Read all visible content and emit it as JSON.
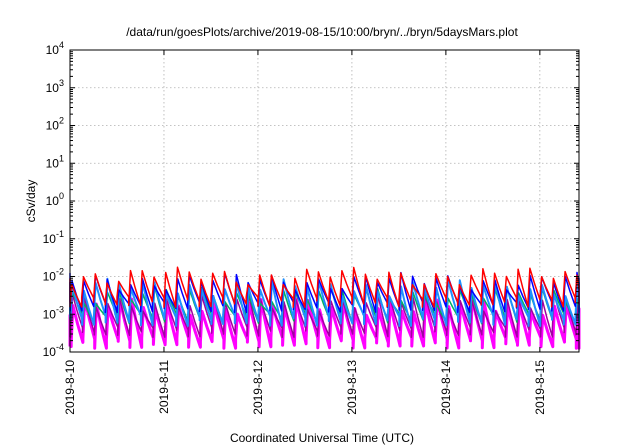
{
  "chart_data": {
    "type": "line",
    "title": "/data/run/goesPlots/archive/2019-08-15/10:00/bryn/../bryn/5daysMars.plot",
    "xlabel": "Coordinated Universal Time (UTC)",
    "ylabel": "cSv/day",
    "yscale": "log",
    "ylim": [
      0.0001,
      10000
    ],
    "xlim": [
      "2019-08-10T00:00",
      "2019-08-15T10:00"
    ],
    "grid": true,
    "x_ticks": [
      "2019-8-10",
      "2019-8-11",
      "2019-8-12",
      "2019-8-13",
      "2019-8-14",
      "2019-8-15"
    ],
    "y_ticks": [
      {
        "value": 0.0001,
        "base": "10",
        "exp": "-4"
      },
      {
        "value": 0.001,
        "base": "10",
        "exp": "-3"
      },
      {
        "value": 0.01,
        "base": "10",
        "exp": "-2"
      },
      {
        "value": 0.1,
        "base": "10",
        "exp": "-1"
      },
      {
        "value": 1,
        "base": "10",
        "exp": "0"
      },
      {
        "value": 10,
        "base": "10",
        "exp": "1"
      },
      {
        "value": 100,
        "base": "10",
        "exp": "2"
      },
      {
        "value": 1000,
        "base": "10",
        "exp": "3"
      },
      {
        "value": 10000,
        "base": "10",
        "exp": "4"
      }
    ],
    "cycle_hours": 3,
    "series": [
      {
        "color": "#ff00ff",
        "peak": 0.0017,
        "trough": 0.00018,
        "shift_hours": 0.3,
        "width": 3
      },
      {
        "color": "#a000a0",
        "peak": 0.0022,
        "trough": 0.00035,
        "shift_hours": 0.2,
        "width": 1.5
      },
      {
        "color": "#00b060",
        "peak": 0.0035,
        "trough": 0.0008,
        "shift_hours": 0.15,
        "width": 1.5
      },
      {
        "color": "#1e90ff",
        "peak": 0.0055,
        "trough": 0.0007,
        "shift_hours": 0.1,
        "width": 2
      },
      {
        "color": "#0000ff",
        "peak": 0.008,
        "trough": 0.0016,
        "shift_hours": 0.05,
        "width": 1.5
      },
      {
        "color": "#ff0000",
        "peak": 0.011,
        "trough": 0.0022,
        "shift_hours": 0.0,
        "width": 1.5
      }
    ]
  }
}
